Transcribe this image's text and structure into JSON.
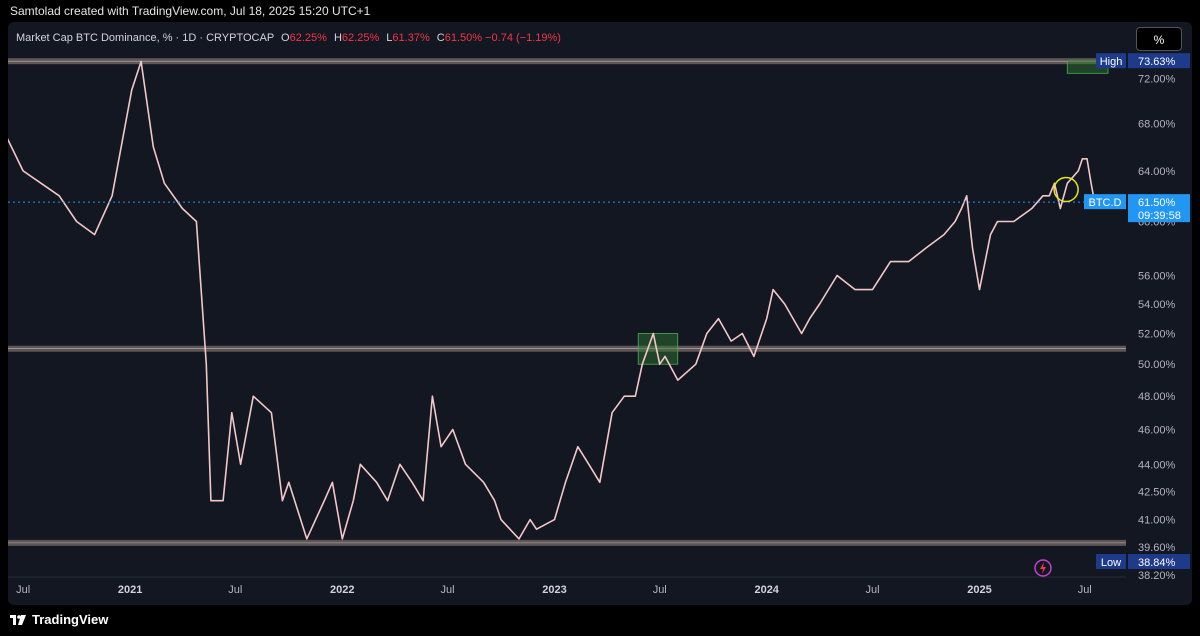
{
  "header": {
    "credit": "Samtolad created with TradingView.com, Jul 18, 2025 15:20 UTC+1"
  },
  "legend": {
    "symbol": "Market Cap BTC Dominance, % · 1D · CRYPTOCAP",
    "open_label": "O",
    "open": "62.25%",
    "high_label": "H",
    "high": "62.25%",
    "low_label": "L",
    "low": "61.37%",
    "close_label": "C",
    "close": "61.50%",
    "change": "−0.74 (−1.19%)"
  },
  "toolbar": {
    "scale_mode": "%"
  },
  "footer": {
    "brand": "TradingView"
  },
  "colors": {
    "background": "#131722",
    "price_line": "#2196f3",
    "candle": "#f4c7c7",
    "down": "#f23645",
    "zone_fill": "#2e7d32",
    "level_band": "#7a6b66",
    "label_bg": "#1e3a8a",
    "circle": "#e6e617"
  },
  "chart_data": {
    "type": "line",
    "series": [
      {
        "x": [
          "2020-06-01",
          "2020-07-01",
          "2020-08-01",
          "2020-09-01",
          "2020-10-01",
          "2020-11-01",
          "2020-12-01",
          "2021-01-04",
          "2021-01-20",
          "2021-02-10",
          "2021-03-01",
          "2021-04-01",
          "2021-04-25",
          "2021-05-12",
          "2021-05-20",
          "2021-06-10",
          "2021-06-25",
          "2021-07-10",
          "2021-08-01",
          "2021-09-01",
          "2021-09-20",
          "2021-10-01",
          "2021-11-01",
          "2021-12-01",
          "2021-12-15",
          "2022-01-01",
          "2022-01-20",
          "2022-02-01",
          "2022-03-01",
          "2022-03-20",
          "2022-04-10",
          "2022-05-01",
          "2022-05-20",
          "2022-06-05",
          "2022-06-20",
          "2022-07-10",
          "2022-08-01",
          "2022-09-01",
          "2022-09-20",
          "2022-10-01",
          "2022-11-01",
          "2022-11-20",
          "2022-12-01",
          "2023-01-01",
          "2023-01-20",
          "2023-02-10",
          "2023-03-01",
          "2023-03-20",
          "2023-04-10",
          "2023-05-01",
          "2023-05-20",
          "2023-06-01",
          "2023-06-20",
          "2023-07-01",
          "2023-07-10",
          "2023-08-01",
          "2023-09-01",
          "2023-09-20",
          "2023-10-10",
          "2023-11-01",
          "2023-11-20",
          "2023-12-10",
          "2024-01-01",
          "2024-01-12",
          "2024-02-01",
          "2024-03-01",
          "2024-03-15",
          "2024-04-01",
          "2024-05-01",
          "2024-06-01",
          "2024-07-01",
          "2024-08-01",
          "2024-09-01",
          "2024-10-01",
          "2024-11-01",
          "2024-11-20",
          "2024-12-01",
          "2024-12-10",
          "2024-12-20",
          "2025-01-01",
          "2025-01-20",
          "2025-02-01",
          "2025-03-01",
          "2025-04-01",
          "2025-04-20",
          "2025-05-01",
          "2025-05-10",
          "2025-05-20",
          "2025-06-01",
          "2025-06-20",
          "2025-06-27",
          "2025-07-05",
          "2025-07-12",
          "2025-07-18"
        ],
        "y": [
          67,
          64,
          63,
          62,
          60,
          59,
          62,
          71,
          73.6,
          66,
          63,
          61,
          60,
          50,
          42,
          42,
          47,
          44,
          48,
          47,
          42,
          43,
          40,
          42,
          43,
          40,
          42,
          44,
          43,
          42,
          44,
          43,
          42,
          48,
          45,
          46,
          44,
          43,
          42,
          41,
          40,
          41,
          40.5,
          41,
          43,
          45,
          44,
          43,
          47,
          48,
          48,
          50,
          52,
          50,
          50.5,
          49,
          50,
          52,
          53,
          51.5,
          52,
          50.5,
          53,
          55,
          54,
          52,
          53,
          54,
          56,
          55,
          55,
          57,
          57,
          58,
          59,
          60,
          61,
          62,
          58,
          55,
          59,
          60,
          60,
          61,
          62,
          62,
          63,
          61,
          63,
          64,
          65,
          65,
          63,
          61.5
        ]
      }
    ],
    "y_axis_ticks": [
      "72.00%",
      "68.00%",
      "64.00%",
      "60.00%",
      "56.00%",
      "54.00%",
      "52.00%",
      "50.00%",
      "48.00%",
      "46.00%",
      "44.00%",
      "42.50%",
      "41.00%",
      "39.60%",
      "38.20%"
    ],
    "x_axis_ticks": [
      "Jul",
      "2021",
      "Jul",
      "2022",
      "Jul",
      "2023",
      "Jul",
      "2024",
      "Jul",
      "2025",
      "Jul"
    ],
    "axis_labels": {
      "high_tag": "High",
      "high_value": "73.63%",
      "low_tag": "Low",
      "low_value": "38.84%",
      "symbol_tag": "BTC.D",
      "last_value": "61.50%",
      "countdown": "09:39:58"
    },
    "levels": [
      73.63,
      51.0,
      39.8
    ],
    "zones": [
      {
        "x0": "2023-05-25",
        "x1": "2023-08-01",
        "y0": 50.0,
        "y1": 52.0
      },
      {
        "x0": "2025-06-01",
        "x1": "2025-08-10",
        "y0": 72.5,
        "y1": 73.63
      }
    ],
    "marker": {
      "x": "2025-05-30",
      "y": 62.5
    },
    "last_price": 61.5,
    "ylim": [
      38.2,
      74.5
    ],
    "log_scale": true
  }
}
